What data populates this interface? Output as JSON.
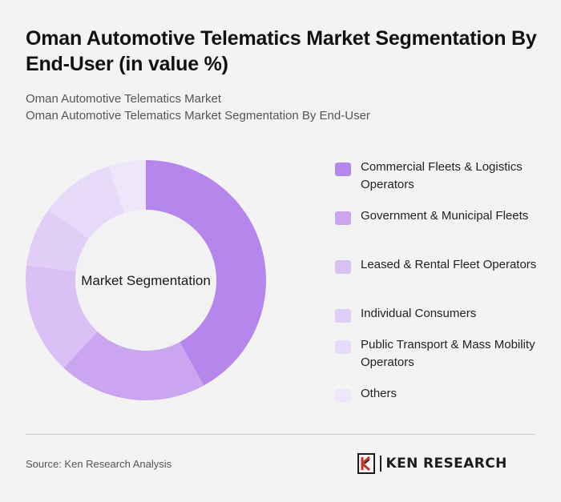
{
  "header": {
    "title": "Oman Automotive Telematics Market Segmentation By End-User (in value %)",
    "subtitle_line1": "Oman Automotive Telematics Market",
    "subtitle_line2": "Oman Automotive Telematics Market Segmentation By End-User"
  },
  "chart_data": {
    "type": "pie",
    "variant": "donut",
    "center_label": "Market Segmentation",
    "categories": [
      "Commercial Fleets & Logistics Operators",
      "Government & Municipal Fleets",
      "Leased & Rental Fleet Operators",
      "Individual Consumers",
      "Public Transport & Mass Mobility Operators",
      "Others"
    ],
    "values": [
      42,
      20,
      15,
      8,
      10,
      5
    ],
    "colors": [
      "#b586ec",
      "#caa5f0",
      "#dac0f5",
      "#e0cef7",
      "#e7daf8",
      "#eee6fa"
    ],
    "legend_position": "right"
  },
  "footer": {
    "source": "Source: Ken Research Analysis",
    "brand": "KEN RESEARCH"
  }
}
